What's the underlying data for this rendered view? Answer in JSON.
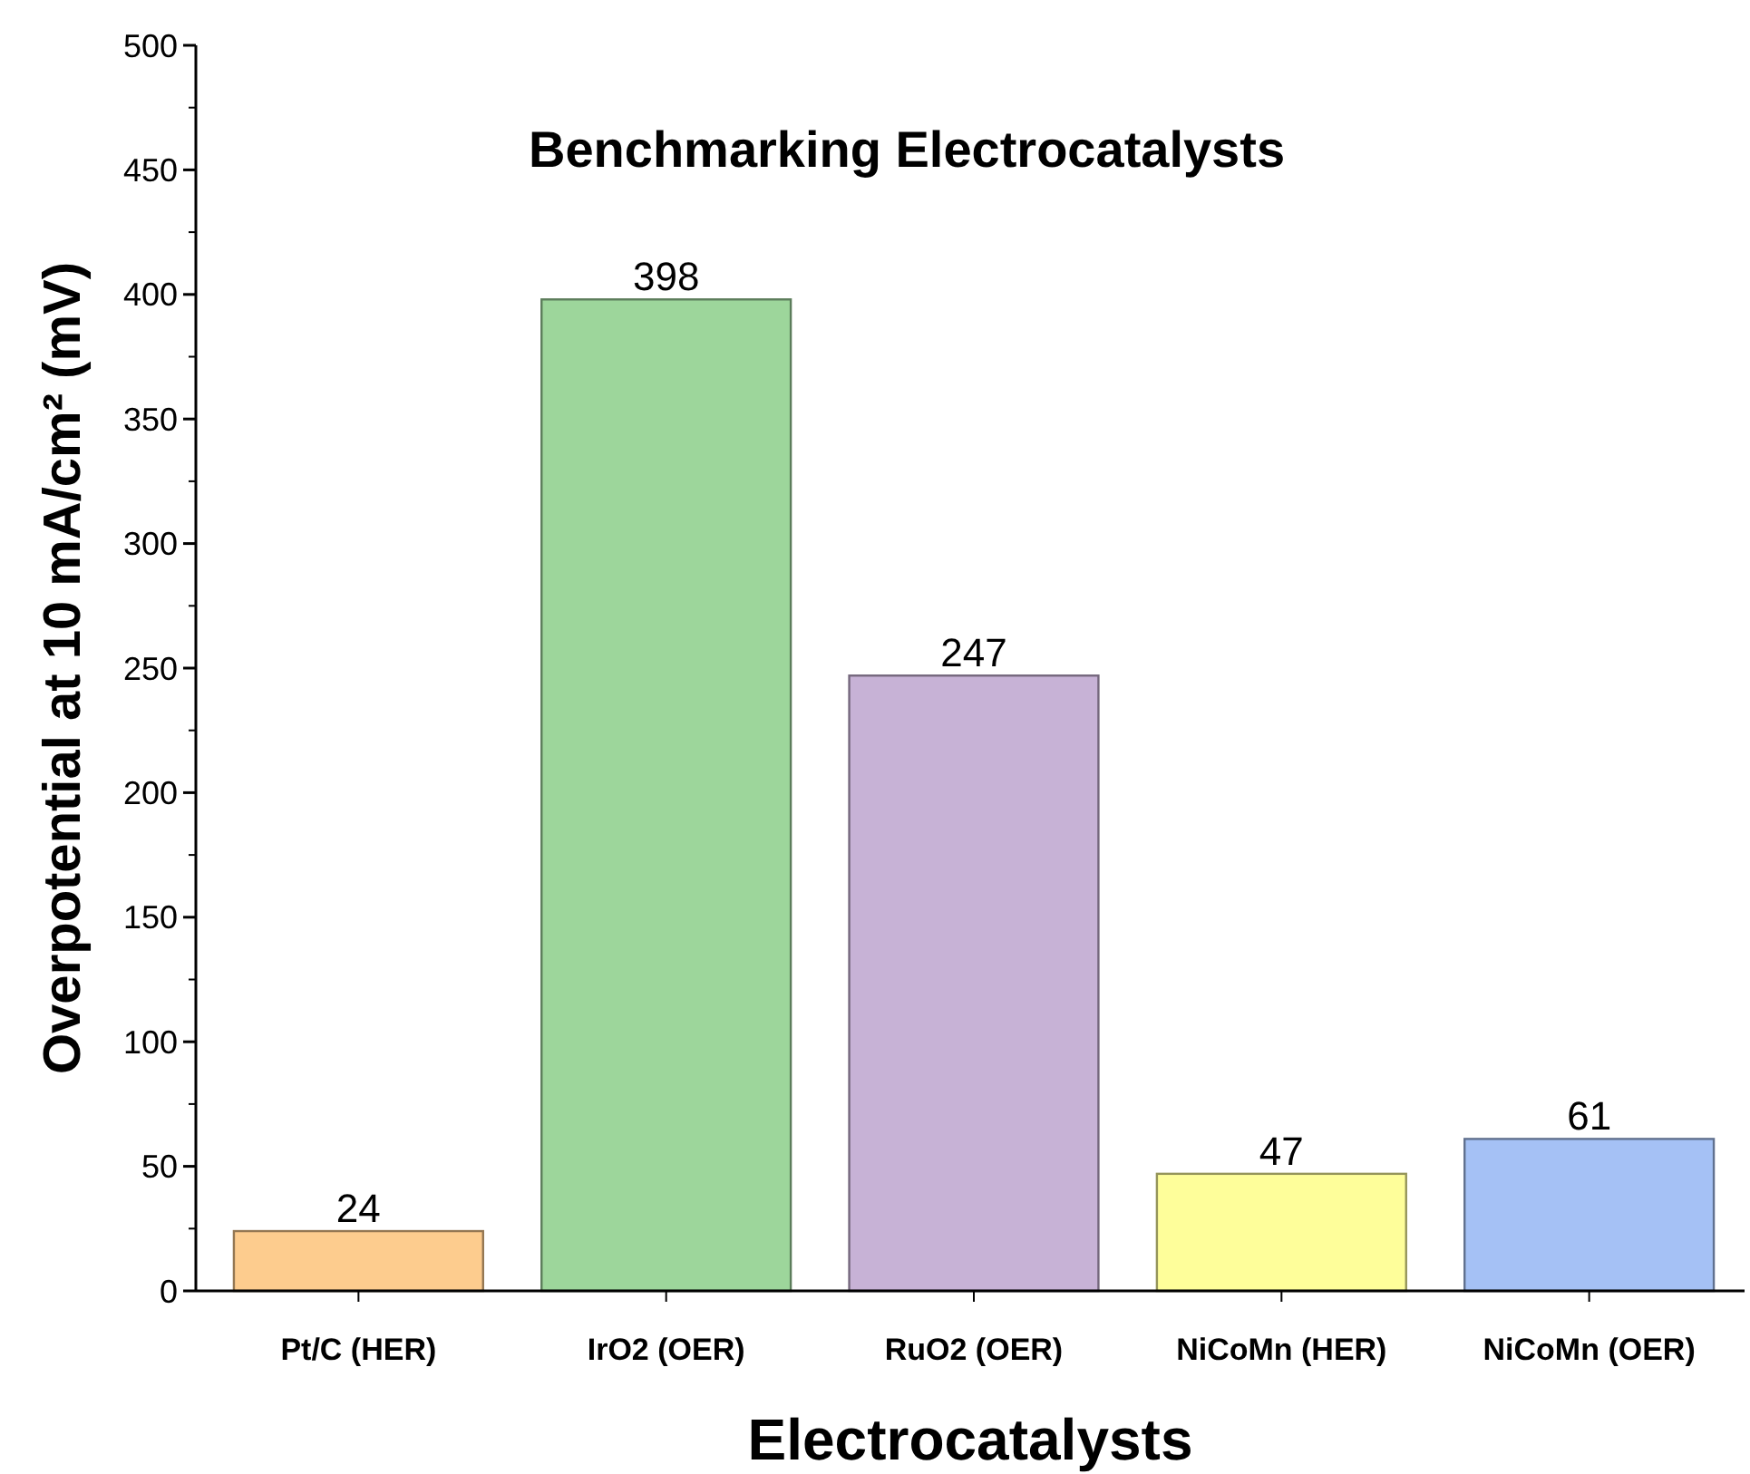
{
  "chart_data": {
    "type": "bar",
    "title": "Benchmarking Electrocatalysts",
    "xlabel": "Electrocatalysts",
    "ylabel": "Overpotential at 10 mA/cm² (mV)",
    "categories": [
      "Pt/C (HER)",
      "IrO2 (OER)",
      "RuO2 (OER)",
      "NiCoMn (HER)",
      "NiCoMn (OER)"
    ],
    "values": [
      24,
      398,
      247,
      47,
      61
    ],
    "colors": [
      "#fdcc8e",
      "#9dd69b",
      "#c7b2d6",
      "#fefe9a",
      "#a5c1f5"
    ],
    "ylim": [
      0,
      500
    ],
    "yticks": [
      0,
      50,
      100,
      150,
      200,
      250,
      300,
      350,
      400,
      450,
      500
    ],
    "data_labels": true
  }
}
